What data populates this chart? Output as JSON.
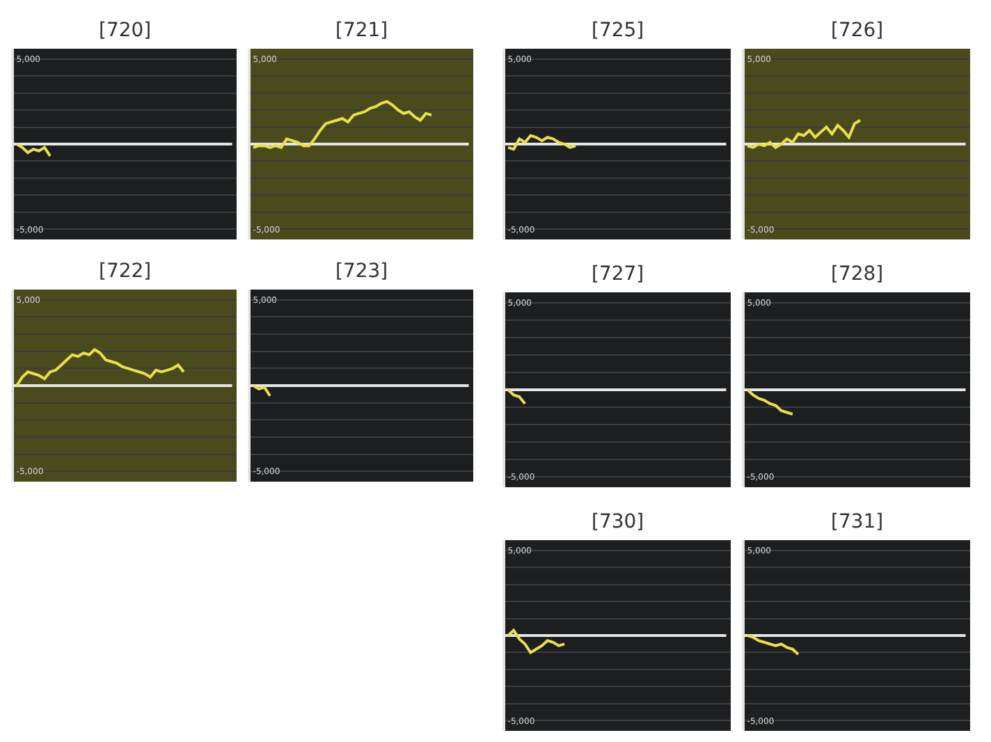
{
  "chart_data": [
    {
      "type": "line",
      "title": "[720]",
      "categories": [
        null,
        null,
        null,
        null,
        null,
        null,
        null,
        null,
        null,
        null,
        null,
        null,
        null,
        null,
        null,
        null,
        null,
        null,
        null,
        null,
        null,
        null,
        null,
        null,
        null,
        null,
        null,
        null,
        null,
        null,
        null,
        null,
        null,
        null,
        null,
        null,
        null,
        null,
        null,
        null
      ],
      "values": [
        0,
        -200,
        -500,
        -300,
        -400,
        -200,
        -700,
        null,
        null,
        null,
        null,
        null,
        null,
        null,
        null,
        null,
        null,
        null,
        null,
        null,
        null,
        null,
        null,
        null,
        null,
        null,
        null,
        null,
        null,
        null,
        null,
        null,
        null,
        null,
        null,
        null,
        null,
        null,
        null,
        null
      ],
      "color": "#e8e04a",
      "ylim": [
        -5600,
        5600
      ],
      "yticks": [
        {
          "value": -5000,
          "label": "-5,000"
        },
        {
          "value": -4000,
          "label": null
        },
        {
          "value": -3000,
          "label": null
        },
        {
          "value": -2000,
          "label": null
        },
        {
          "value": -1000,
          "label": null
        },
        {
          "value": 1000,
          "label": null
        },
        {
          "value": 2000,
          "label": null
        },
        {
          "value": 3000,
          "label": null
        },
        {
          "value": 4000,
          "label": null
        },
        {
          "value": 5000,
          "label": "5,000"
        }
      ],
      "grid": "y",
      "tick_labels": "y",
      "ref_lines": [
        {
          "axis": "y",
          "value": 0,
          "label": null,
          "color": "#e6e6e6"
        }
      ]
    },
    {
      "type": "line",
      "title": "[721]",
      "categories": [
        null,
        null,
        null,
        null,
        null,
        null,
        null,
        null,
        null,
        null,
        null,
        null,
        null,
        null,
        null,
        null,
        null,
        null,
        null,
        null,
        null,
        null,
        null,
        null,
        null,
        null,
        null,
        null,
        null,
        null,
        null,
        null,
        null,
        null,
        null,
        null,
        null,
        null,
        null,
        null
      ],
      "values": [
        -200,
        -100,
        -100,
        -200,
        -100,
        -200,
        300,
        200,
        100,
        -100,
        -100,
        300,
        800,
        1200,
        1300,
        1400,
        1500,
        1300,
        1700,
        1800,
        1900,
        2100,
        2200,
        2400,
        2500,
        2300,
        2000,
        1800,
        1900,
        1600,
        1400,
        1800,
        1700,
        null,
        null,
        null,
        null,
        null,
        null,
        null
      ],
      "color": "#e8e04a",
      "ylim": [
        -5600,
        5600
      ],
      "yticks": [
        {
          "value": -5000,
          "label": "-5,000"
        },
        {
          "value": -4000,
          "label": null
        },
        {
          "value": -3000,
          "label": null
        },
        {
          "value": -2000,
          "label": null
        },
        {
          "value": -1000,
          "label": null
        },
        {
          "value": 1000,
          "label": null
        },
        {
          "value": 2000,
          "label": null
        },
        {
          "value": 3000,
          "label": null
        },
        {
          "value": 4000,
          "label": null
        },
        {
          "value": 5000,
          "label": "5,000"
        }
      ],
      "grid": "y",
      "tick_labels": "y",
      "ref_lines": [
        {
          "axis": "y",
          "value": 0,
          "label": null,
          "color": "#e6e6e6"
        }
      ],
      "bands": [
        {
          "axis": "y",
          "from": -5600,
          "to": 5600,
          "label": null,
          "color": "#4b4a1c"
        }
      ]
    },
    {
      "type": "line",
      "title": "[722]",
      "categories": [
        null,
        null,
        null,
        null,
        null,
        null,
        null,
        null,
        null,
        null,
        null,
        null,
        null,
        null,
        null,
        null,
        null,
        null,
        null,
        null,
        null,
        null,
        null,
        null,
        null,
        null,
        null,
        null,
        null,
        null,
        null,
        null,
        null,
        null,
        null,
        null,
        null,
        null,
        null,
        null
      ],
      "values": [
        0,
        500,
        800,
        700,
        600,
        400,
        800,
        900,
        1200,
        1500,
        1800,
        1700,
        1900,
        1800,
        2100,
        1900,
        1500,
        1400,
        1300,
        1100,
        1000,
        900,
        800,
        700,
        500,
        900,
        800,
        900,
        1000,
        1200,
        800,
        null,
        null,
        null,
        null,
        null,
        null,
        null,
        null,
        null
      ],
      "color": "#e8e04a",
      "ylim": [
        -5600,
        5600
      ],
      "yticks": [
        {
          "value": -5000,
          "label": "-5,000"
        },
        {
          "value": -4000,
          "label": null
        },
        {
          "value": -3000,
          "label": null
        },
        {
          "value": -2000,
          "label": null
        },
        {
          "value": -1000,
          "label": null
        },
        {
          "value": 1000,
          "label": null
        },
        {
          "value": 2000,
          "label": null
        },
        {
          "value": 3000,
          "label": null
        },
        {
          "value": 4000,
          "label": null
        },
        {
          "value": 5000,
          "label": "5,000"
        }
      ],
      "grid": "y",
      "tick_labels": "y",
      "ref_lines": [
        {
          "axis": "y",
          "value": 0,
          "label": null,
          "color": "#e6e6e6"
        }
      ],
      "bands": [
        {
          "axis": "y",
          "from": -5600,
          "to": 5600,
          "label": null,
          "color": "#4b4a1c"
        }
      ]
    },
    {
      "type": "line",
      "title": "[723]",
      "categories": [
        null,
        null,
        null,
        null,
        null,
        null,
        null,
        null,
        null,
        null,
        null,
        null,
        null,
        null,
        null,
        null,
        null,
        null,
        null,
        null,
        null,
        null,
        null,
        null,
        null,
        null,
        null,
        null,
        null,
        null,
        null,
        null,
        null,
        null,
        null,
        null,
        null,
        null,
        null,
        null
      ],
      "values": [
        0,
        -200,
        -100,
        -600,
        null,
        null,
        null,
        null,
        null,
        null,
        null,
        null,
        null,
        null,
        null,
        null,
        null,
        null,
        null,
        null,
        null,
        null,
        null,
        null,
        null,
        null,
        null,
        null,
        null,
        null,
        null,
        null,
        null,
        null,
        null,
        null,
        null,
        null,
        null,
        null
      ],
      "color": "#e8e04a",
      "ylim": [
        -5600,
        5600
      ],
      "yticks": [
        {
          "value": -5000,
          "label": "-5,000"
        },
        {
          "value": -4000,
          "label": null
        },
        {
          "value": -3000,
          "label": null
        },
        {
          "value": -2000,
          "label": null
        },
        {
          "value": -1000,
          "label": null
        },
        {
          "value": 1000,
          "label": null
        },
        {
          "value": 2000,
          "label": null
        },
        {
          "value": 3000,
          "label": null
        },
        {
          "value": 4000,
          "label": null
        },
        {
          "value": 5000,
          "label": "5,000"
        }
      ],
      "grid": "y",
      "tick_labels": "y",
      "ref_lines": [
        {
          "axis": "y",
          "value": 0,
          "label": null,
          "color": "#e6e6e6"
        }
      ]
    },
    {
      "type": "line",
      "title": "[725]",
      "categories": [
        null,
        null,
        null,
        null,
        null,
        null,
        null,
        null,
        null,
        null,
        null,
        null,
        null,
        null,
        null,
        null,
        null,
        null,
        null,
        null,
        null,
        null,
        null,
        null,
        null,
        null,
        null,
        null,
        null,
        null,
        null,
        null,
        null,
        null,
        null,
        null,
        null,
        null,
        null,
        null
      ],
      "values": [
        -200,
        -300,
        300,
        100,
        500,
        400,
        200,
        400,
        300,
        100,
        0,
        -200,
        -100,
        null,
        null,
        null,
        null,
        null,
        null,
        null,
        null,
        null,
        null,
        null,
        null,
        null,
        null,
        null,
        null,
        null,
        null,
        null,
        null,
        null,
        null,
        null,
        null,
        null,
        null,
        null
      ],
      "color": "#e8e04a",
      "ylim": [
        -5600,
        5600
      ],
      "yticks": [
        {
          "value": -5000,
          "label": "-5,000"
        },
        {
          "value": -4000,
          "label": null
        },
        {
          "value": -3000,
          "label": null
        },
        {
          "value": -2000,
          "label": null
        },
        {
          "value": -1000,
          "label": null
        },
        {
          "value": 1000,
          "label": null
        },
        {
          "value": 2000,
          "label": null
        },
        {
          "value": 3000,
          "label": null
        },
        {
          "value": 4000,
          "label": null
        },
        {
          "value": 5000,
          "label": "5,000"
        }
      ],
      "grid": "y",
      "tick_labels": "y",
      "ref_lines": [
        {
          "axis": "y",
          "value": 0,
          "label": null,
          "color": "#e6e6e6"
        }
      ]
    },
    {
      "type": "line",
      "title": "[726]",
      "categories": [
        null,
        null,
        null,
        null,
        null,
        null,
        null,
        null,
        null,
        null,
        null,
        null,
        null,
        null,
        null,
        null,
        null,
        null,
        null,
        null,
        null,
        null,
        null,
        null,
        null,
        null,
        null,
        null,
        null,
        null,
        null,
        null,
        null,
        null,
        null,
        null,
        null,
        null,
        null,
        null
      ],
      "values": [
        -100,
        -200,
        0,
        -100,
        100,
        -200,
        0,
        300,
        100,
        600,
        500,
        800,
        400,
        700,
        1000,
        600,
        1100,
        800,
        400,
        1200,
        1400,
        null,
        null,
        null,
        null,
        null,
        null,
        null,
        null,
        null,
        null,
        null,
        null,
        null,
        null,
        null,
        null,
        null,
        null,
        null
      ],
      "color": "#e8e04a",
      "ylim": [
        -5600,
        5600
      ],
      "yticks": [
        {
          "value": -5000,
          "label": "-5,000"
        },
        {
          "value": -4000,
          "label": null
        },
        {
          "value": -3000,
          "label": null
        },
        {
          "value": -2000,
          "label": null
        },
        {
          "value": -1000,
          "label": null
        },
        {
          "value": 1000,
          "label": null
        },
        {
          "value": 2000,
          "label": null
        },
        {
          "value": 3000,
          "label": null
        },
        {
          "value": 4000,
          "label": null
        },
        {
          "value": 5000,
          "label": "5,000"
        }
      ],
      "grid": "y",
      "tick_labels": "y",
      "ref_lines": [
        {
          "axis": "y",
          "value": 0,
          "label": null,
          "color": "#e6e6e6"
        }
      ],
      "bands": [
        {
          "axis": "y",
          "from": -5600,
          "to": 5600,
          "label": null,
          "color": "#4b4a1c"
        }
      ]
    },
    {
      "type": "line",
      "title": "[727]",
      "categories": [
        null,
        null,
        null,
        null,
        null,
        null,
        null,
        null,
        null,
        null,
        null,
        null,
        null,
        null,
        null,
        null,
        null,
        null,
        null,
        null,
        null,
        null,
        null,
        null,
        null,
        null,
        null,
        null,
        null,
        null,
        null,
        null,
        null,
        null,
        null,
        null,
        null,
        null,
        null,
        null
      ],
      "values": [
        0,
        -300,
        -400,
        -800,
        null,
        null,
        null,
        null,
        null,
        null,
        null,
        null,
        null,
        null,
        null,
        null,
        null,
        null,
        null,
        null,
        null,
        null,
        null,
        null,
        null,
        null,
        null,
        null,
        null,
        null,
        null,
        null,
        null,
        null,
        null,
        null,
        null,
        null,
        null,
        null
      ],
      "color": "#e8e04a",
      "ylim": [
        -5600,
        5600
      ],
      "yticks": [
        {
          "value": -5000,
          "label": "-5,000"
        },
        {
          "value": -4000,
          "label": null
        },
        {
          "value": -3000,
          "label": null
        },
        {
          "value": -2000,
          "label": null
        },
        {
          "value": -1000,
          "label": null
        },
        {
          "value": 1000,
          "label": null
        },
        {
          "value": 2000,
          "label": null
        },
        {
          "value": 3000,
          "label": null
        },
        {
          "value": 4000,
          "label": null
        },
        {
          "value": 5000,
          "label": "5,000"
        }
      ],
      "grid": "y",
      "tick_labels": "y",
      "ref_lines": [
        {
          "axis": "y",
          "value": 0,
          "label": null,
          "color": "#e6e6e6"
        }
      ]
    },
    {
      "type": "line",
      "title": "[728]",
      "categories": [
        null,
        null,
        null,
        null,
        null,
        null,
        null,
        null,
        null,
        null,
        null,
        null,
        null,
        null,
        null,
        null,
        null,
        null,
        null,
        null,
        null,
        null,
        null,
        null,
        null,
        null,
        null,
        null,
        null,
        null,
        null,
        null,
        null,
        null,
        null,
        null,
        null,
        null,
        null,
        null
      ],
      "values": [
        0,
        -300,
        -500,
        -600,
        -800,
        -900,
        -1200,
        -1300,
        -1400,
        null,
        null,
        null,
        null,
        null,
        null,
        null,
        null,
        null,
        null,
        null,
        null,
        null,
        null,
        null,
        null,
        null,
        null,
        null,
        null,
        null,
        null,
        null,
        null,
        null,
        null,
        null,
        null,
        null,
        null,
        null
      ],
      "color": "#e8e04a",
      "ylim": [
        -5600,
        5600
      ],
      "yticks": [
        {
          "value": -5000,
          "label": "-5,000"
        },
        {
          "value": -4000,
          "label": null
        },
        {
          "value": -3000,
          "label": null
        },
        {
          "value": -2000,
          "label": null
        },
        {
          "value": -1000,
          "label": null
        },
        {
          "value": 1000,
          "label": null
        },
        {
          "value": 2000,
          "label": null
        },
        {
          "value": 3000,
          "label": null
        },
        {
          "value": 4000,
          "label": null
        },
        {
          "value": 5000,
          "label": "5,000"
        }
      ],
      "grid": "y",
      "tick_labels": "y",
      "ref_lines": [
        {
          "axis": "y",
          "value": 0,
          "label": null,
          "color": "#e6e6e6"
        }
      ]
    },
    {
      "type": "line",
      "title": "[730]",
      "categories": [
        null,
        null,
        null,
        null,
        null,
        null,
        null,
        null,
        null,
        null,
        null,
        null,
        null,
        null,
        null,
        null,
        null,
        null,
        null,
        null,
        null,
        null,
        null,
        null,
        null,
        null,
        null,
        null,
        null,
        null,
        null,
        null,
        null,
        null,
        null,
        null,
        null,
        null,
        null,
        null
      ],
      "values": [
        0,
        300,
        -200,
        -500,
        -1000,
        -800,
        -600,
        -300,
        -400,
        -600,
        -500,
        null,
        null,
        null,
        null,
        null,
        null,
        null,
        null,
        null,
        null,
        null,
        null,
        null,
        null,
        null,
        null,
        null,
        null,
        null,
        null,
        null,
        null,
        null,
        null,
        null,
        null,
        null,
        null,
        null
      ],
      "color": "#e8e04a",
      "ylim": [
        -5600,
        5600
      ],
      "yticks": [
        {
          "value": -5000,
          "label": "-5,000"
        },
        {
          "value": -4000,
          "label": null
        },
        {
          "value": -3000,
          "label": null
        },
        {
          "value": -2000,
          "label": null
        },
        {
          "value": -1000,
          "label": null
        },
        {
          "value": 1000,
          "label": null
        },
        {
          "value": 2000,
          "label": null
        },
        {
          "value": 3000,
          "label": null
        },
        {
          "value": 4000,
          "label": null
        },
        {
          "value": 5000,
          "label": "5,000"
        }
      ],
      "grid": "y",
      "tick_labels": "y",
      "ref_lines": [
        {
          "axis": "y",
          "value": 0,
          "label": null,
          "color": "#e6e6e6"
        }
      ]
    },
    {
      "type": "line",
      "title": "[731]",
      "categories": [
        null,
        null,
        null,
        null,
        null,
        null,
        null,
        null,
        null,
        null,
        null,
        null,
        null,
        null,
        null,
        null,
        null,
        null,
        null,
        null,
        null,
        null,
        null,
        null,
        null,
        null,
        null,
        null,
        null,
        null,
        null,
        null,
        null,
        null,
        null,
        null,
        null,
        null,
        null,
        null
      ],
      "values": [
        0,
        -100,
        -300,
        -400,
        -500,
        -600,
        -500,
        -700,
        -800,
        -1100,
        null,
        null,
        null,
        null,
        null,
        null,
        null,
        null,
        null,
        null,
        null,
        null,
        null,
        null,
        null,
        null,
        null,
        null,
        null,
        null,
        null,
        null,
        null,
        null,
        null,
        null,
        null,
        null,
        null,
        null
      ],
      "color": "#e8e04a",
      "ylim": [
        -5600,
        5600
      ],
      "yticks": [
        {
          "value": -5000,
          "label": "-5,000"
        },
        {
          "value": -4000,
          "label": null
        },
        {
          "value": -3000,
          "label": null
        },
        {
          "value": -2000,
          "label": null
        },
        {
          "value": -1000,
          "label": null
        },
        {
          "value": 1000,
          "label": null
        },
        {
          "value": 2000,
          "label": null
        },
        {
          "value": 3000,
          "label": null
        },
        {
          "value": 4000,
          "label": null
        },
        {
          "value": 5000,
          "label": "5,000"
        }
      ],
      "grid": "y",
      "tick_labels": "y",
      "ref_lines": [
        {
          "axis": "y",
          "value": 0,
          "label": null,
          "color": "#e6e6e6"
        }
      ]
    }
  ]
}
